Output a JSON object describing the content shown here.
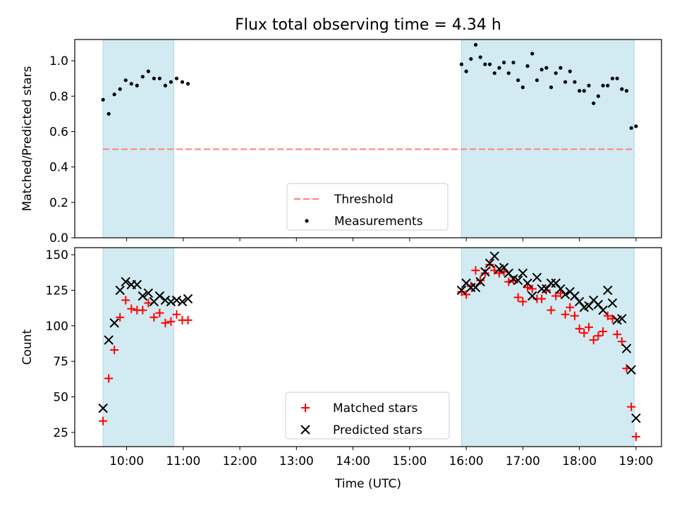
{
  "title": "Flux total observing time = 4.34 h",
  "colors": {
    "shade": "#add8e6",
    "threshold": "#ff7f7f",
    "matched": "#ff0000",
    "predicted": "#000000",
    "measurement": "#000000"
  },
  "chart_data": [
    {
      "type": "scatter",
      "ylabel": "Matched/Predicted stars",
      "ylim": [
        0,
        1.12
      ],
      "yticks": [
        0.0,
        0.2,
        0.4,
        0.6,
        0.8,
        1.0
      ],
      "ytick_labels": [
        "0.0",
        "0.2",
        "0.4",
        "0.6",
        "0.8",
        "1.0"
      ],
      "threshold": {
        "name": "Threshold",
        "value": 0.5,
        "x_range": [
          "09:35",
          "18:58"
        ]
      },
      "shaded_intervals": [
        [
          "09:35",
          "10:50"
        ],
        [
          "15:55",
          "18:58"
        ]
      ],
      "legend_position": "lower center",
      "series": [
        {
          "name": "Measurements",
          "points": [
            [
              "09:35",
              0.78
            ],
            [
              "09:41",
              0.7
            ],
            [
              "09:47",
              0.81
            ],
            [
              "09:53",
              0.84
            ],
            [
              "09:59",
              0.89
            ],
            [
              "10:05",
              0.87
            ],
            [
              "10:11",
              0.86
            ],
            [
              "10:17",
              0.91
            ],
            [
              "10:23",
              0.94
            ],
            [
              "10:29",
              0.9
            ],
            [
              "10:35",
              0.9
            ],
            [
              "10:41",
              0.86
            ],
            [
              "10:47",
              0.88
            ],
            [
              "10:53",
              0.9
            ],
            [
              "10:59",
              0.88
            ],
            [
              "11:05",
              0.87
            ],
            [
              "15:55",
              0.98
            ],
            [
              "16:00",
              0.94
            ],
            [
              "16:05",
              1.01
            ],
            [
              "16:10",
              1.09
            ],
            [
              "16:15",
              1.02
            ],
            [
              "16:20",
              0.98
            ],
            [
              "16:25",
              0.98
            ],
            [
              "16:30",
              0.93
            ],
            [
              "16:35",
              0.96
            ],
            [
              "16:40",
              0.99
            ],
            [
              "16:45",
              0.93
            ],
            [
              "16:50",
              0.99
            ],
            [
              "16:55",
              0.89
            ],
            [
              "17:00",
              0.85
            ],
            [
              "17:05",
              0.97
            ],
            [
              "17:10",
              1.04
            ],
            [
              "17:15",
              0.89
            ],
            [
              "17:20",
              0.95
            ],
            [
              "17:25",
              0.96
            ],
            [
              "17:30",
              0.85
            ],
            [
              "17:35",
              0.93
            ],
            [
              "17:40",
              0.96
            ],
            [
              "17:45",
              0.88
            ],
            [
              "17:50",
              0.94
            ],
            [
              "17:55",
              0.88
            ],
            [
              "18:00",
              0.83
            ],
            [
              "18:05",
              0.83
            ],
            [
              "18:10",
              0.86
            ],
            [
              "18:15",
              0.76
            ],
            [
              "18:20",
              0.8
            ],
            [
              "18:25",
              0.86
            ],
            [
              "18:30",
              0.86
            ],
            [
              "18:35",
              0.9
            ],
            [
              "18:40",
              0.9
            ],
            [
              "18:45",
              0.84
            ],
            [
              "18:50",
              0.83
            ],
            [
              "18:55",
              0.62
            ],
            [
              "19:00",
              0.63
            ]
          ]
        }
      ]
    },
    {
      "type": "scatter",
      "xlabel": "Time (UTC)",
      "ylabel": "Count",
      "ylim": [
        15,
        155
      ],
      "yticks": [
        25,
        50,
        75,
        100,
        125,
        150
      ],
      "ytick_labels": [
        "25",
        "50",
        "75",
        "100",
        "125",
        "150"
      ],
      "xlim": [
        "09:05",
        "19:27"
      ],
      "xticks": [
        "10:00",
        "11:00",
        "12:00",
        "13:00",
        "14:00",
        "15:00",
        "16:00",
        "17:00",
        "18:00",
        "19:00"
      ],
      "xtick_labels": [
        "10:00",
        "11:00",
        "12:00",
        "13:00",
        "14:00",
        "15:00",
        "16:00",
        "17:00",
        "18:00",
        "19:00"
      ],
      "shaded_intervals": [
        [
          "09:35",
          "10:50"
        ],
        [
          "15:55",
          "18:58"
        ]
      ],
      "legend_position": "lower center",
      "series": [
        {
          "name": "Matched stars",
          "marker": "plus",
          "points": [
            [
              "09:35",
              33
            ],
            [
              "09:41",
              63
            ],
            [
              "09:47",
              83
            ],
            [
              "09:53",
              106
            ],
            [
              "09:59",
              118
            ],
            [
              "10:05",
              112
            ],
            [
              "10:11",
              111
            ],
            [
              "10:17",
              111
            ],
            [
              "10:23",
              116
            ],
            [
              "10:29",
              106
            ],
            [
              "10:35",
              109
            ],
            [
              "10:41",
              102
            ],
            [
              "10:47",
              103
            ],
            [
              "10:53",
              108
            ],
            [
              "10:59",
              104
            ],
            [
              "11:05",
              104
            ],
            [
              "15:55",
              124
            ],
            [
              "16:00",
              122
            ],
            [
              "16:05",
              128
            ],
            [
              "16:10",
              139
            ],
            [
              "16:15",
              132
            ],
            [
              "16:20",
              137
            ],
            [
              "16:25",
              143
            ],
            [
              "16:30",
              139
            ],
            [
              "16:35",
              137
            ],
            [
              "16:40",
              138
            ],
            [
              "16:45",
              131
            ],
            [
              "16:50",
              132
            ],
            [
              "16:55",
              120
            ],
            [
              "17:00",
              117
            ],
            [
              "17:05",
              127
            ],
            [
              "17:10",
              126
            ],
            [
              "17:15",
              119
            ],
            [
              "17:20",
              119
            ],
            [
              "17:25",
              125
            ],
            [
              "17:30",
              111
            ],
            [
              "17:35",
              121
            ],
            [
              "17:40",
              123
            ],
            [
              "17:45",
              108
            ],
            [
              "17:50",
              113
            ],
            [
              "17:55",
              107
            ],
            [
              "18:00",
              98
            ],
            [
              "18:05",
              95
            ],
            [
              "18:10",
              99
            ],
            [
              "18:15",
              90
            ],
            [
              "18:20",
              93
            ],
            [
              "18:25",
              96
            ],
            [
              "18:30",
              107
            ],
            [
              "18:35",
              105
            ],
            [
              "18:40",
              94
            ],
            [
              "18:45",
              89
            ],
            [
              "18:50",
              70
            ],
            [
              "18:55",
              43
            ],
            [
              "19:00",
              22
            ]
          ]
        },
        {
          "name": "Predicted stars",
          "marker": "x",
          "points": [
            [
              "09:35",
              42
            ],
            [
              "09:41",
              90
            ],
            [
              "09:47",
              102
            ],
            [
              "09:53",
              125
            ],
            [
              "09:59",
              131
            ],
            [
              "10:05",
              129
            ],
            [
              "10:11",
              129
            ],
            [
              "10:17",
              121
            ],
            [
              "10:23",
              123
            ],
            [
              "10:29",
              117
            ],
            [
              "10:35",
              121
            ],
            [
              "10:41",
              118
            ],
            [
              "10:47",
              117
            ],
            [
              "10:53",
              118
            ],
            [
              "10:59",
              117
            ],
            [
              "11:05",
              119
            ],
            [
              "15:55",
              125
            ],
            [
              "16:00",
              130
            ],
            [
              "16:05",
              127
            ],
            [
              "16:10",
              127
            ],
            [
              "16:15",
              131
            ],
            [
              "16:20",
              138
            ],
            [
              "16:25",
              144
            ],
            [
              "16:30",
              149
            ],
            [
              "16:35",
              140
            ],
            [
              "16:40",
              141
            ],
            [
              "16:45",
              137
            ],
            [
              "16:50",
              133
            ],
            [
              "16:55",
              132
            ],
            [
              "17:00",
              137
            ],
            [
              "17:05",
              130
            ],
            [
              "17:10",
              121
            ],
            [
              "17:15",
              134
            ],
            [
              "17:20",
              126
            ],
            [
              "17:25",
              126
            ],
            [
              "17:30",
              130
            ],
            [
              "17:35",
              130
            ],
            [
              "17:40",
              126
            ],
            [
              "17:45",
              122
            ],
            [
              "17:50",
              124
            ],
            [
              "17:55",
              121
            ],
            [
              "18:00",
              117
            ],
            [
              "18:05",
              113
            ],
            [
              "18:10",
              114
            ],
            [
              "18:15",
              118
            ],
            [
              "18:20",
              115
            ],
            [
              "18:25",
              111
            ],
            [
              "18:30",
              125
            ],
            [
              "18:35",
              116
            ],
            [
              "18:40",
              104
            ],
            [
              "18:45",
              105
            ],
            [
              "18:50",
              84
            ],
            [
              "18:55",
              69
            ],
            [
              "19:00",
              35
            ]
          ]
        }
      ]
    }
  ]
}
